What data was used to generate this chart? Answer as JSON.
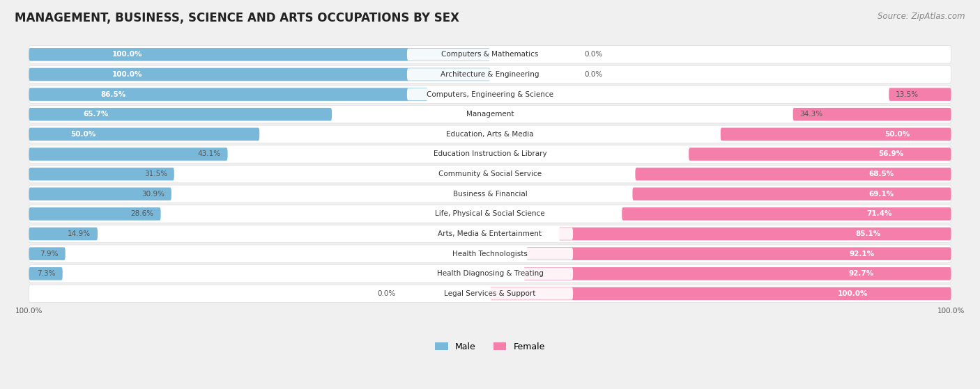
{
  "title": "MANAGEMENT, BUSINESS, SCIENCE AND ARTS OCCUPATIONS BY SEX",
  "source": "Source: ZipAtlas.com",
  "categories": [
    "Computers & Mathematics",
    "Architecture & Engineering",
    "Computers, Engineering & Science",
    "Management",
    "Education, Arts & Media",
    "Education Instruction & Library",
    "Community & Social Service",
    "Business & Financial",
    "Life, Physical & Social Science",
    "Arts, Media & Entertainment",
    "Health Technologists",
    "Health Diagnosing & Treating",
    "Legal Services & Support"
  ],
  "male": [
    100.0,
    100.0,
    86.5,
    65.7,
    50.0,
    43.1,
    31.5,
    30.9,
    28.6,
    14.9,
    7.9,
    7.3,
    0.0
  ],
  "female": [
    0.0,
    0.0,
    13.5,
    34.3,
    50.0,
    56.9,
    68.5,
    69.1,
    71.4,
    85.1,
    92.1,
    92.7,
    100.0
  ],
  "male_color": "#7ab8d9",
  "female_color": "#f47faa",
  "bg_color": "#f0f0f0",
  "row_bg_color": "#ffffff",
  "title_fontsize": 12,
  "source_fontsize": 8.5,
  "label_fontsize": 7.5,
  "bar_label_fontsize": 7.5,
  "legend_fontsize": 9
}
